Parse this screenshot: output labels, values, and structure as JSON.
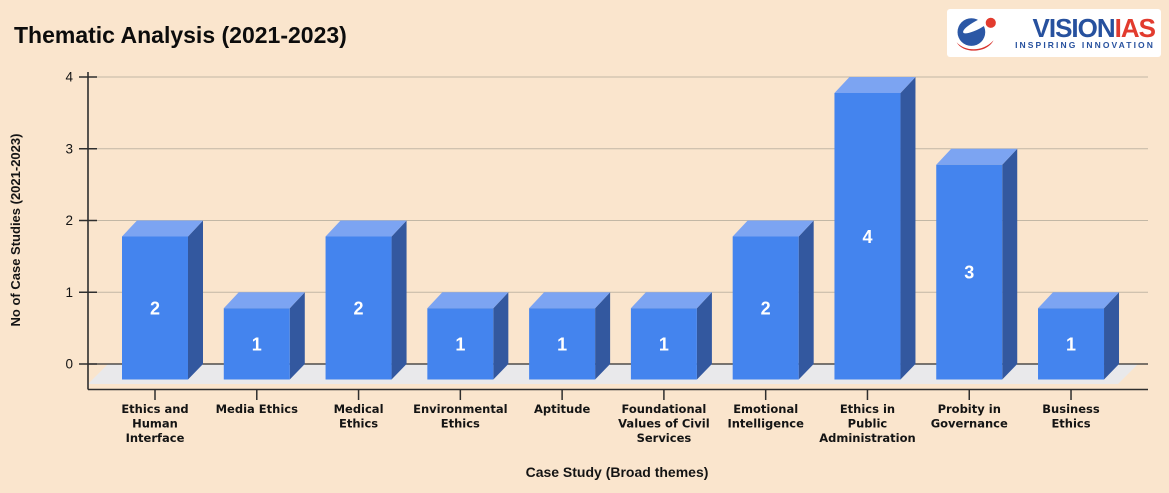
{
  "page": {
    "background": "#FAE5CD",
    "title": "Thematic Analysis (2021-2023)"
  },
  "logo": {
    "brand_primary": "VISION",
    "brand_secondary": "IAS",
    "tagline": "INSPIRING INNOVATION",
    "primary_color": "#27519E",
    "secondary_color": "#E23B2E"
  },
  "chart_data": {
    "type": "bar",
    "style": "3d-column",
    "title": "Thematic Analysis (2021-2023)",
    "xlabel": "Case Study (Broad themes)",
    "ylabel": "No of Case Studies (2021-2023)",
    "ylim": [
      0,
      4
    ],
    "yticks": [
      0,
      1,
      2,
      3,
      4
    ],
    "grid": true,
    "legend": "none",
    "categories": [
      "Ethics and Human Interface",
      "Media Ethics",
      "Medical Ethics",
      "Environmental Ethics",
      "Aptitude",
      "Foundational Values of Civil Services",
      "Emotional Intelligence",
      "Ethics in Public Administration",
      "Probity in Governance",
      "Business Ethics"
    ],
    "category_label_lines": [
      [
        "Ethics and",
        "Human",
        "Interface"
      ],
      [
        "Media Ethics"
      ],
      [
        "Medical",
        "Ethics"
      ],
      [
        "Environmental",
        "Ethics"
      ],
      [
        "Aptitude"
      ],
      [
        "Foundational",
        "Values of Civil",
        "Services"
      ],
      [
        "Emotional",
        "Intelligence"
      ],
      [
        "Ethics in",
        "Public",
        "Administration"
      ],
      [
        "Probity in",
        "Governance"
      ],
      [
        "Business",
        "Ethics"
      ]
    ],
    "values": [
      2,
      1,
      2,
      1,
      1,
      1,
      2,
      4,
      3,
      1
    ],
    "colors": {
      "bar_front": "#4484EE",
      "bar_top": "#7CA4F2",
      "bar_side": "#33589F",
      "value_label": "#FFFFFF",
      "gridline": "#C2B7A5",
      "axis": "#2E2E2E",
      "floor": "#E9E9EB",
      "text": "#141414"
    }
  }
}
